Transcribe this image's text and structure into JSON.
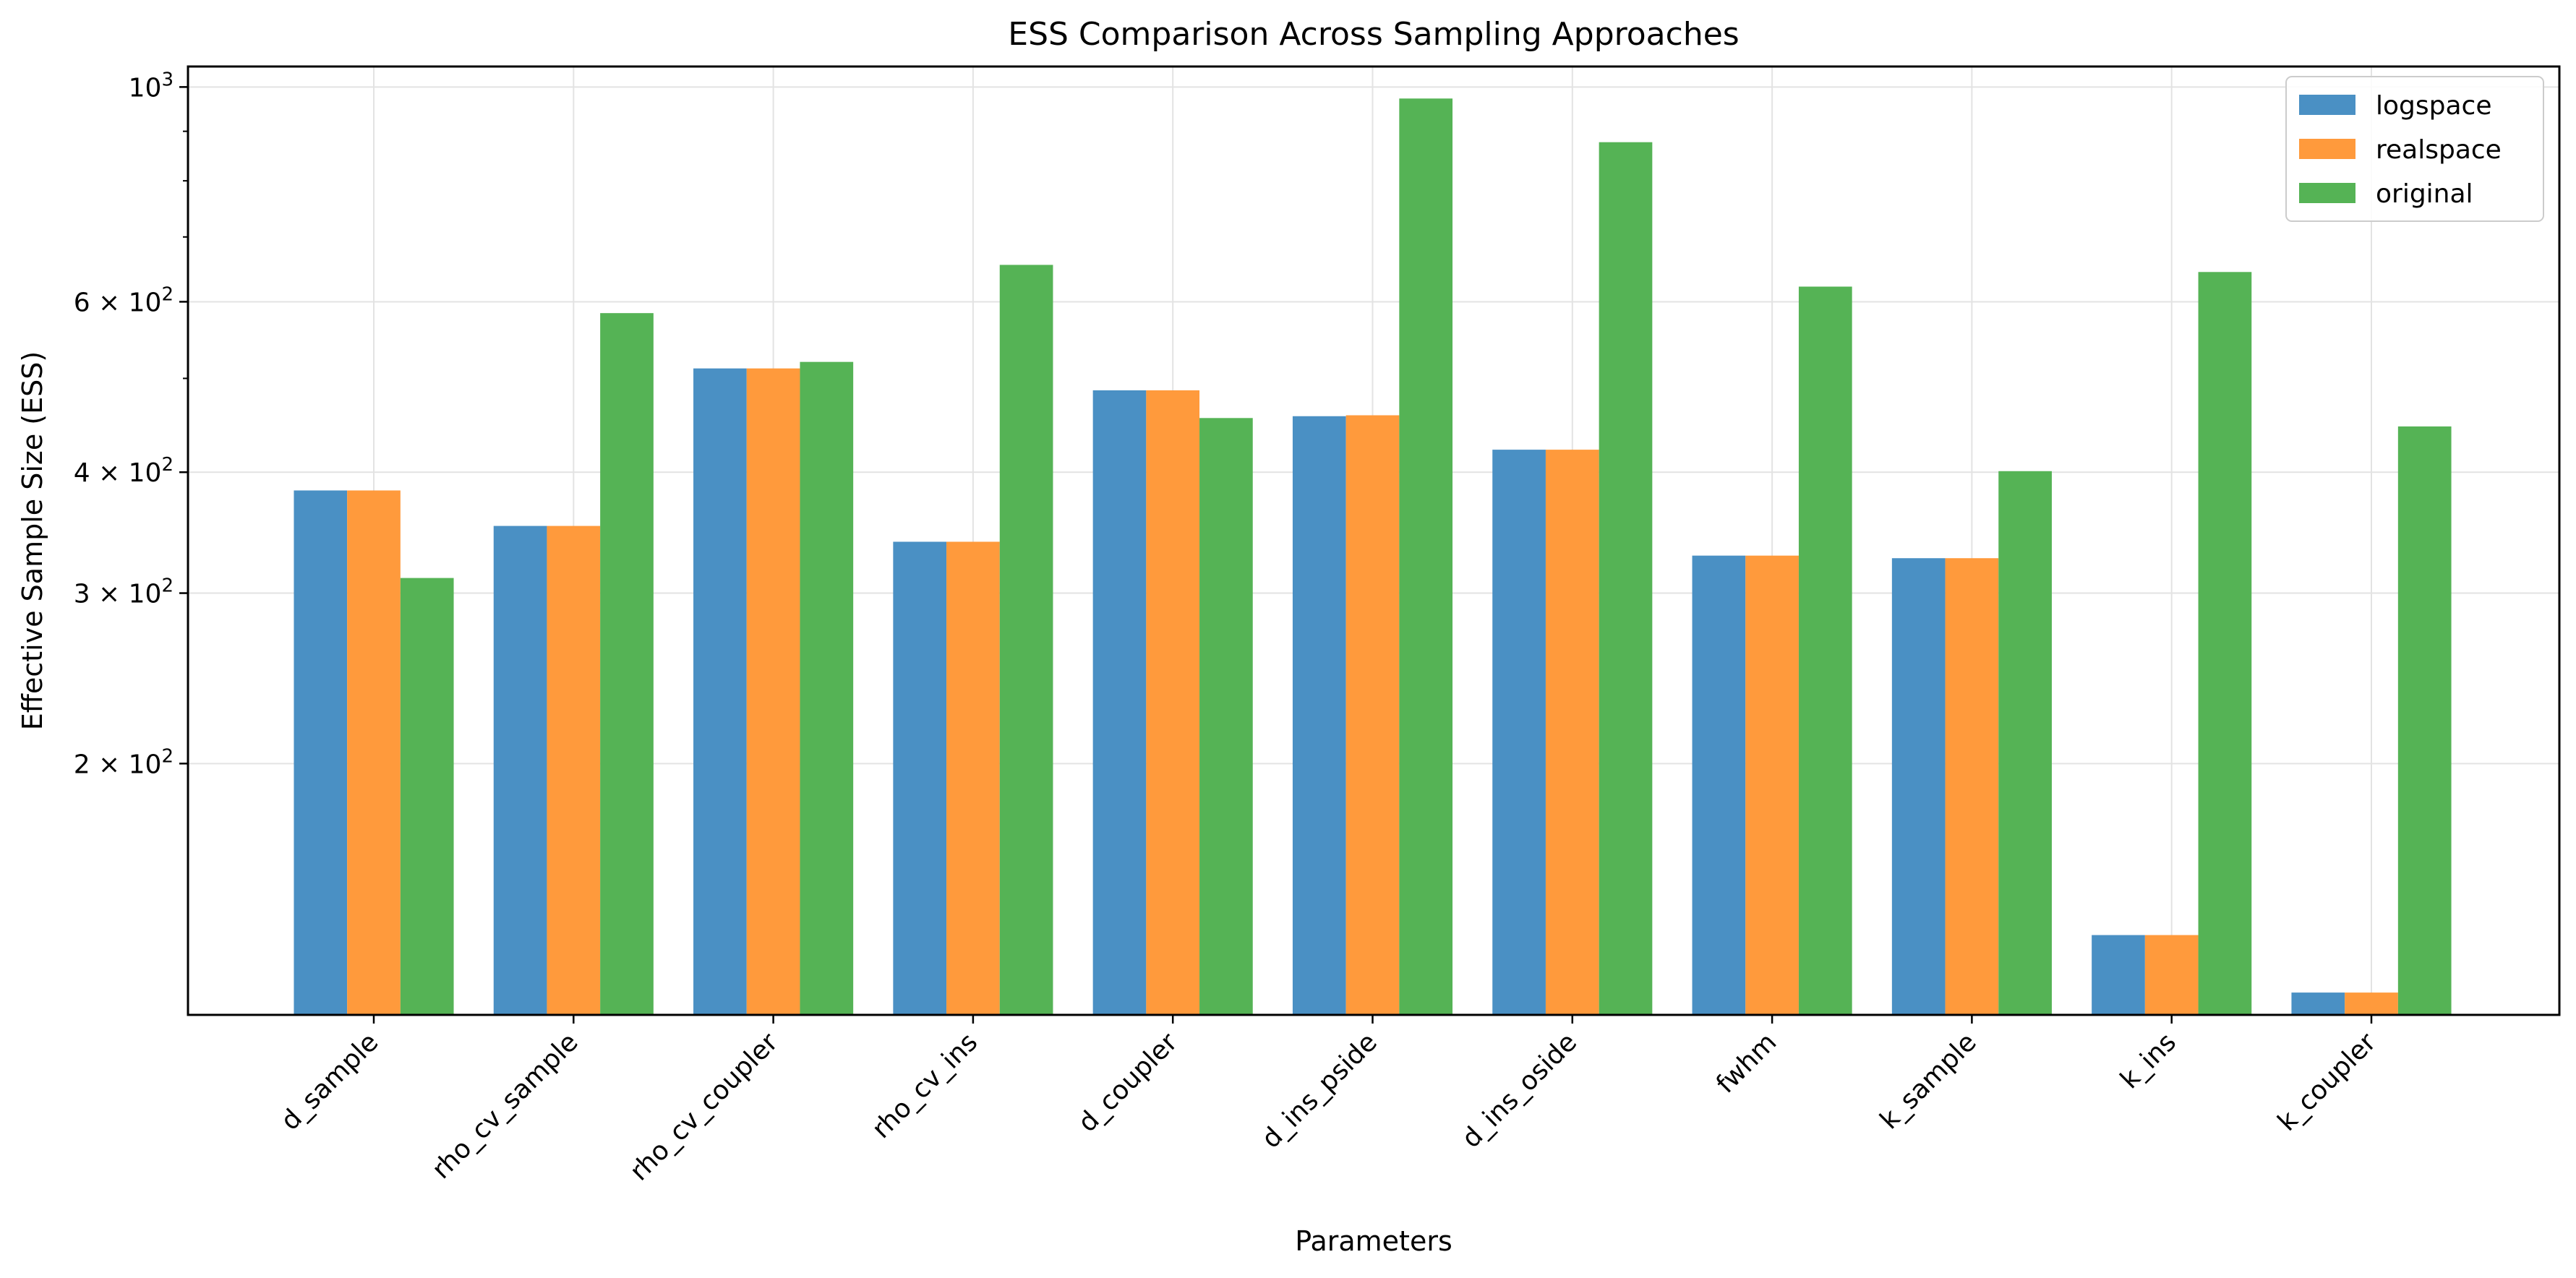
{
  "chart_data": {
    "type": "bar",
    "title": "ESS Comparison Across Sampling Approaches",
    "xlabel": "Parameters",
    "ylabel": "Effective Sample Size (ESS)",
    "yscale": "log",
    "ylim": [
      110,
      1050
    ],
    "y_ticks": [
      {
        "value": 1000,
        "base": "10",
        "exp": "3"
      },
      {
        "value": 600,
        "base": "6 × 10",
        "exp": "2"
      },
      {
        "value": 400,
        "base": "4 × 10",
        "exp": "2"
      },
      {
        "value": 300,
        "base": "3 × 10",
        "exp": "2"
      },
      {
        "value": 200,
        "base": "2 × 10",
        "exp": "2"
      }
    ],
    "grid": true,
    "legend_position": "top-right",
    "categories": [
      "d_sample",
      "rho_cv_sample",
      "rho_cv_coupler",
      "rho_cv_ins",
      "d_coupler",
      "d_ins_pside",
      "d_ins_oside",
      "fwhm",
      "k_sample",
      "k_ins",
      "k_coupler"
    ],
    "series": [
      {
        "name": "logspace",
        "color": "#4a90c4",
        "values": [
          383,
          352,
          512,
          339,
          486,
          457,
          422,
          328,
          326,
          133,
          116
        ]
      },
      {
        "name": "realspace",
        "color": "#ff9a3c",
        "values": [
          383,
          352,
          512,
          339,
          486,
          458,
          422,
          328,
          326,
          133,
          116
        ]
      },
      {
        "name": "original",
        "color": "#55b355",
        "values": [
          311,
          584,
          520,
          655,
          455,
          973,
          877,
          622,
          401,
          644,
          446
        ]
      }
    ]
  }
}
